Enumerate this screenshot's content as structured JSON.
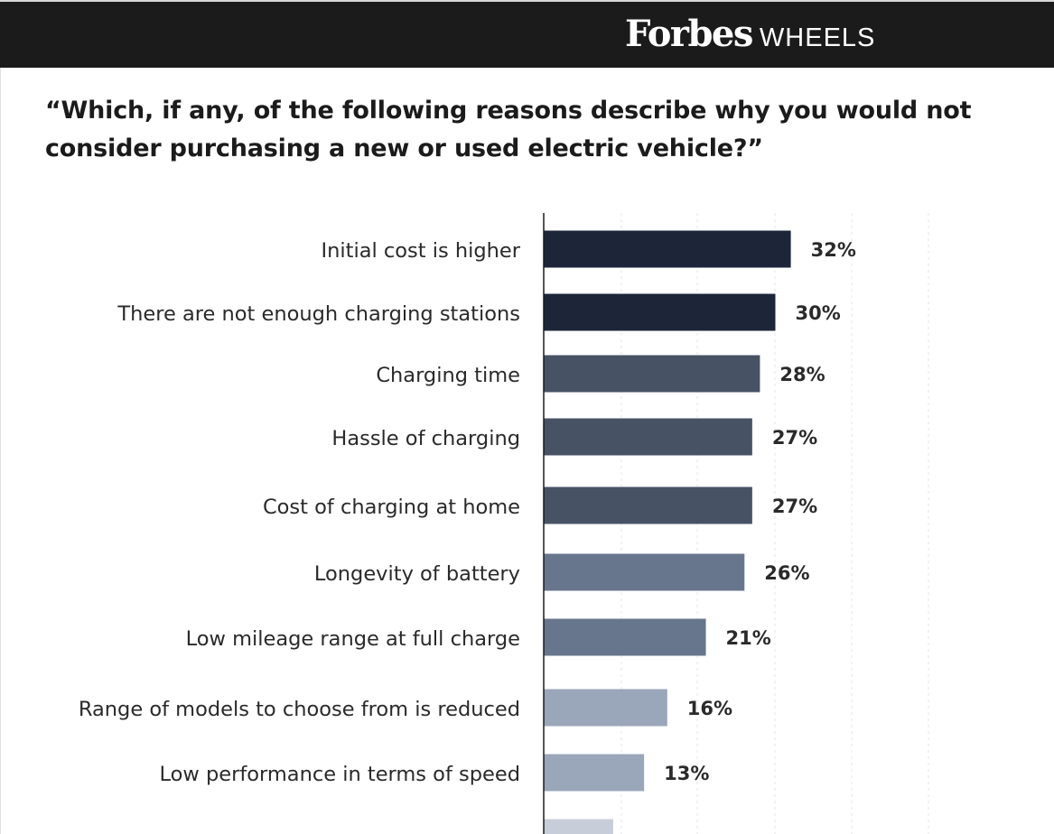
{
  "header": {
    "brand_name": "Forbes",
    "brand_sub": "WHEELS"
  },
  "chart_data": {
    "type": "bar",
    "orientation": "horizontal",
    "title": "“Which, if any, of the following reasons describe why you would not consider purchasing a new or used electric vehicle?”",
    "xlabel": "",
    "ylabel": "",
    "grid": true,
    "xlim": [
      0,
      50
    ],
    "categories": [
      "Initial cost is higher",
      "There are not enough charging stations",
      "Charging time",
      "Hassle of charging",
      "Cost of charging at home",
      "Longevity of battery",
      "Low mileage range at full charge",
      "Range of models to choose from is reduced",
      "Low performance in terms of speed",
      ""
    ],
    "values": [
      32,
      30,
      28,
      27,
      27,
      26,
      21,
      16,
      13,
      9
    ],
    "data_labels": [
      "32%",
      "30%",
      "28%",
      "27%",
      "27%",
      "26%",
      "21%",
      "16%",
      "13%",
      ""
    ],
    "colors": [
      "#1d2639",
      "#1d2639",
      "#475265",
      "#475265",
      "#475265",
      "#68768d",
      "#68768d",
      "#9aa6b9",
      "#9aa6b9",
      "#c8ced9"
    ]
  }
}
